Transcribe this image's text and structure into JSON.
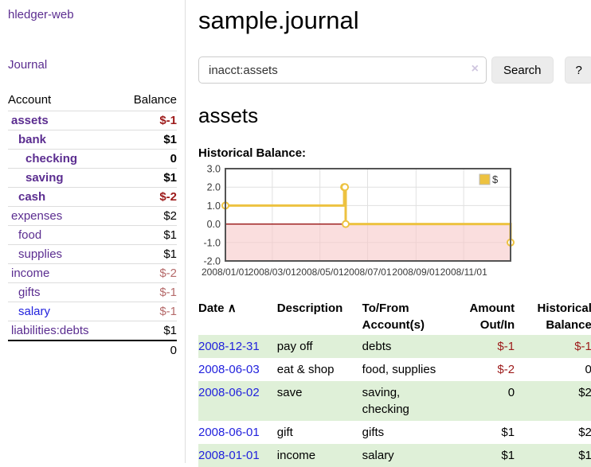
{
  "app": {
    "brand": "hledger-web"
  },
  "sidebar": {
    "journal_link": "Journal",
    "account_header": "Account",
    "balance_header": "Balance",
    "accounts": [
      {
        "name": "assets",
        "depth": 1,
        "bold": true,
        "balance": "$-1",
        "balance_style": "strong-neg",
        "name_color": "purple"
      },
      {
        "name": "bank",
        "depth": 2,
        "bold": true,
        "balance": "$1",
        "balance_style": "normal",
        "name_color": "purple"
      },
      {
        "name": "checking",
        "depth": 3,
        "bold": true,
        "balance": "0",
        "balance_style": "normal",
        "name_color": "purple"
      },
      {
        "name": "saving",
        "depth": 3,
        "bold": true,
        "balance": "$1",
        "balance_style": "normal",
        "name_color": "purple"
      },
      {
        "name": "cash",
        "depth": 2,
        "bold": true,
        "balance": "$-2",
        "balance_style": "strong-neg",
        "name_color": "purple"
      },
      {
        "name": "expenses",
        "depth": 1,
        "bold": false,
        "balance": "$2",
        "balance_style": "normal",
        "name_color": "purple"
      },
      {
        "name": "food",
        "depth": 2,
        "bold": false,
        "balance": "$1",
        "balance_style": "normal",
        "name_color": "purple"
      },
      {
        "name": "supplies",
        "depth": 2,
        "bold": false,
        "balance": "$1",
        "balance_style": "normal",
        "name_color": "purple"
      },
      {
        "name": "income",
        "depth": 1,
        "bold": false,
        "balance": "$-2",
        "balance_style": "muted-neg",
        "name_color": "purple"
      },
      {
        "name": "gifts",
        "depth": 2,
        "bold": false,
        "balance": "$-1",
        "balance_style": "muted-neg",
        "name_color": "purple"
      },
      {
        "name": "salary",
        "depth": 2,
        "bold": false,
        "balance": "$-1",
        "balance_style": "muted-neg",
        "name_color": "blue"
      },
      {
        "name": "liabilities:debts",
        "depth": 1,
        "bold": false,
        "balance": "$1",
        "balance_style": "normal",
        "name_color": "purple"
      }
    ],
    "total": "0"
  },
  "header": {
    "title": "sample.journal"
  },
  "search": {
    "value": "inacct:assets",
    "clear_icon": "×",
    "button_label": "Search",
    "help_label": "?"
  },
  "account_page": {
    "heading": "assets",
    "chart_label": "Historical Balance:"
  },
  "chart_data": {
    "type": "line",
    "step": true,
    "title": "Historical Balance",
    "series": [
      {
        "name": "$",
        "color": "#edc240",
        "points": [
          {
            "x": "2008-01-01",
            "y": 1
          },
          {
            "x": "2008-06-01",
            "y": 2
          },
          {
            "x": "2008-06-02",
            "y": 2
          },
          {
            "x": "2008-06-03",
            "y": 0
          },
          {
            "x": "2008-12-31",
            "y": -1
          }
        ]
      }
    ],
    "xrange": [
      "2008-01-01",
      "2008-12-31"
    ],
    "ylim": [
      -2,
      3
    ],
    "yticks": [
      3,
      2,
      1,
      0,
      -1,
      -2
    ],
    "ytick_labels": [
      "3.0",
      "2.0",
      "1.0",
      "0.0",
      "-1.0",
      "-2.0"
    ],
    "xticks": [
      {
        "date": "2008-01-01",
        "label": "2008/01/01"
      },
      {
        "date": "2008-03-01",
        "label": "2008/03/01"
      },
      {
        "date": "2008-05-01",
        "label": "2008/05/01"
      },
      {
        "date": "2008-07-01",
        "label": "2008/07/01"
      },
      {
        "date": "2008-09-01",
        "label": "2008/09/01"
      },
      {
        "date": "2008-11-01",
        "label": "2008/11/01"
      }
    ],
    "legend": {
      "label": "$",
      "position": "top-right"
    },
    "grid": true,
    "grid_color": "#e0e0e0",
    "border_color": "#545454",
    "zero_line_color": "#8f0000",
    "negative_region_color": "#f6c8c8"
  },
  "register": {
    "columns": [
      {
        "label": "Date",
        "sort_indicator": "∧"
      },
      {
        "label": "Description"
      },
      {
        "label": "To/From Account(s)"
      },
      {
        "label": "Amount Out/In"
      },
      {
        "label": "Historical Balance"
      }
    ],
    "rows": [
      {
        "date": "2008-12-31",
        "description": "pay off",
        "accounts": "debts",
        "amount": "$-1",
        "amount_neg": true,
        "balance": "$-1",
        "balance_neg": true
      },
      {
        "date": "2008-06-03",
        "description": "eat & shop",
        "accounts": "food, supplies",
        "amount": "$-2",
        "amount_neg": true,
        "balance": "0",
        "balance_neg": false
      },
      {
        "date": "2008-06-02",
        "description": "save",
        "accounts": "saving, checking",
        "amount": "0",
        "amount_neg": false,
        "balance": "$2",
        "balance_neg": false
      },
      {
        "date": "2008-06-01",
        "description": "gift",
        "accounts": "gifts",
        "amount": "$1",
        "amount_neg": false,
        "balance": "$2",
        "balance_neg": false
      },
      {
        "date": "2008-01-01",
        "description": "income",
        "accounts": "salary",
        "amount": "$1",
        "amount_neg": false,
        "balance": "$1",
        "balance_neg": false
      }
    ]
  },
  "colors": {
    "link_purple": "#5b2d90",
    "link_blue": "#2222dd",
    "negative_strong": "#9d1a1a",
    "negative_muted": "#b56a6a",
    "row_stripe_green": "#dff0d8",
    "series_gold": "#edc240"
  }
}
